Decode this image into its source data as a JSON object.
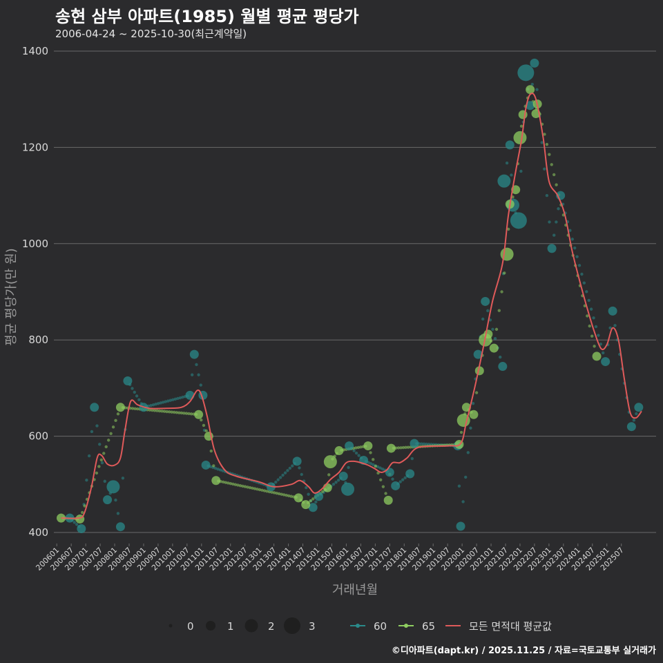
{
  "title": "송현 삼부 아파트(1985) 월별 평균 평당가",
  "subtitle": "2006-04-24 ~ 2025-10-30(최근계약일)",
  "footer": "©디아파트(dapt.kr) / 2025.11.25 / 자료=국토교통부 실거래가",
  "colors": {
    "background": "#2b2b2d",
    "grid": "#6a6a6a",
    "series_60": "#2a8a8a",
    "series_65": "#8fce60",
    "series_avg": "#e05a5a",
    "text": "#d8d8d8"
  },
  "chart_data": {
    "type": "line",
    "xlabel": "거래년월",
    "ylabel": "평균 평당가(만 원)",
    "ylim": [
      380,
      1420
    ],
    "yticks": [
      400,
      600,
      800,
      1000,
      1200,
      1400
    ],
    "xticks": [
      "200601",
      "200607",
      "200701",
      "200707",
      "200801",
      "200807",
      "200901",
      "200907",
      "201001",
      "201007",
      "201101",
      "201107",
      "201201",
      "201207",
      "201301",
      "201307",
      "201401",
      "201407",
      "201501",
      "201507",
      "201601",
      "201607",
      "201701",
      "201707",
      "201801",
      "201807",
      "201901",
      "201907",
      "202001",
      "202007",
      "202101",
      "202107",
      "202201",
      "202207",
      "202301",
      "202307",
      "202401",
      "202407",
      "202501",
      "202507"
    ],
    "size_legend": {
      "labels": [
        "0",
        "1",
        "2",
        "3"
      ]
    },
    "series": [
      {
        "name": "60",
        "points": [
          {
            "x": 2006.45,
            "y": 430,
            "n": 1
          },
          {
            "x": 2006.85,
            "y": 408,
            "n": 1
          },
          {
            "x": 2007.3,
            "y": 660,
            "n": 1
          },
          {
            "x": 2007.75,
            "y": 468,
            "n": 1
          },
          {
            "x": 2007.95,
            "y": 495,
            "n": 2
          },
          {
            "x": 2008.2,
            "y": 412,
            "n": 1
          },
          {
            "x": 2008.45,
            "y": 715,
            "n": 1
          },
          {
            "x": 2009.0,
            "y": 660,
            "n": 1
          },
          {
            "x": 2010.6,
            "y": 685,
            "n": 1
          },
          {
            "x": 2010.75,
            "y": 770,
            "n": 1
          },
          {
            "x": 2011.05,
            "y": 685,
            "n": 1
          },
          {
            "x": 2011.15,
            "y": 540,
            "n": 1
          },
          {
            "x": 2013.4,
            "y": 495,
            "n": 1
          },
          {
            "x": 2014.3,
            "y": 548,
            "n": 1
          },
          {
            "x": 2014.85,
            "y": 452,
            "n": 1
          },
          {
            "x": 2015.05,
            "y": 475,
            "n": 1
          },
          {
            "x": 2015.9,
            "y": 517,
            "n": 1
          },
          {
            "x": 2016.05,
            "y": 490,
            "n": 2
          },
          {
            "x": 2016.1,
            "y": 580,
            "n": 1
          },
          {
            "x": 2016.6,
            "y": 550,
            "n": 1
          },
          {
            "x": 2017.5,
            "y": 525,
            "n": 1
          },
          {
            "x": 2017.7,
            "y": 497,
            "n": 1
          },
          {
            "x": 2018.2,
            "y": 522,
            "n": 1
          },
          {
            "x": 2018.35,
            "y": 585,
            "n": 1
          },
          {
            "x": 2019.85,
            "y": 580,
            "n": 1
          },
          {
            "x": 2019.95,
            "y": 413,
            "n": 1
          },
          {
            "x": 2020.55,
            "y": 770,
            "n": 1
          },
          {
            "x": 2020.8,
            "y": 880,
            "n": 1
          },
          {
            "x": 2021.4,
            "y": 745,
            "n": 1
          },
          {
            "x": 2021.45,
            "y": 1130,
            "n": 2
          },
          {
            "x": 2021.65,
            "y": 1205,
            "n": 1
          },
          {
            "x": 2021.75,
            "y": 1080,
            "n": 2
          },
          {
            "x": 2021.95,
            "y": 1048,
            "n": 3
          },
          {
            "x": 2022.2,
            "y": 1355,
            "n": 3
          },
          {
            "x": 2022.35,
            "y": 1287,
            "n": 1
          },
          {
            "x": 2022.5,
            "y": 1375,
            "n": 1
          },
          {
            "x": 2023.1,
            "y": 990,
            "n": 1
          },
          {
            "x": 2023.4,
            "y": 1100,
            "n": 1
          },
          {
            "x": 2024.95,
            "y": 755,
            "n": 1
          },
          {
            "x": 2025.2,
            "y": 860,
            "n": 1
          },
          {
            "x": 2025.85,
            "y": 620,
            "n": 1
          },
          {
            "x": 2026.1,
            "y": 660,
            "n": 1
          }
        ]
      },
      {
        "name": "65",
        "points": [
          {
            "x": 2006.15,
            "y": 430,
            "n": 1
          },
          {
            "x": 2006.8,
            "y": 428,
            "n": 1
          },
          {
            "x": 2008.2,
            "y": 660,
            "n": 1
          },
          {
            "x": 2010.9,
            "y": 645,
            "n": 1
          },
          {
            "x": 2011.25,
            "y": 600,
            "n": 1
          },
          {
            "x": 2011.5,
            "y": 508,
            "n": 1
          },
          {
            "x": 2014.35,
            "y": 472,
            "n": 1
          },
          {
            "x": 2014.6,
            "y": 458,
            "n": 1
          },
          {
            "x": 2015.35,
            "y": 493,
            "n": 1
          },
          {
            "x": 2015.45,
            "y": 547,
            "n": 2
          },
          {
            "x": 2015.75,
            "y": 570,
            "n": 1
          },
          {
            "x": 2016.75,
            "y": 580,
            "n": 1
          },
          {
            "x": 2017.45,
            "y": 467,
            "n": 1
          },
          {
            "x": 2017.55,
            "y": 575,
            "n": 1
          },
          {
            "x": 2019.9,
            "y": 583,
            "n": 1
          },
          {
            "x": 2020.05,
            "y": 633,
            "n": 2
          },
          {
            "x": 2020.15,
            "y": 660,
            "n": 1
          },
          {
            "x": 2020.4,
            "y": 645,
            "n": 1
          },
          {
            "x": 2020.6,
            "y": 736,
            "n": 1
          },
          {
            "x": 2020.8,
            "y": 800,
            "n": 2
          },
          {
            "x": 2020.9,
            "y": 812,
            "n": 1
          },
          {
            "x": 2021.1,
            "y": 783,
            "n": 1
          },
          {
            "x": 2021.55,
            "y": 978,
            "n": 2
          },
          {
            "x": 2021.65,
            "y": 1082,
            "n": 1
          },
          {
            "x": 2021.85,
            "y": 1112,
            "n": 1
          },
          {
            "x": 2022.0,
            "y": 1220,
            "n": 2
          },
          {
            "x": 2022.1,
            "y": 1268,
            "n": 1
          },
          {
            "x": 2022.35,
            "y": 1320,
            "n": 1
          },
          {
            "x": 2022.55,
            "y": 1270,
            "n": 1
          },
          {
            "x": 2022.6,
            "y": 1290,
            "n": 1
          },
          {
            "x": 2024.65,
            "y": 766,
            "n": 1
          }
        ]
      },
      {
        "name": "모든 면적대 평균값",
        "points": [
          {
            "x": 2006.15,
            "y": 430
          },
          {
            "x": 2006.75,
            "y": 430
          },
          {
            "x": 2006.95,
            "y": 440
          },
          {
            "x": 2007.2,
            "y": 495
          },
          {
            "x": 2007.4,
            "y": 556
          },
          {
            "x": 2007.55,
            "y": 560
          },
          {
            "x": 2007.75,
            "y": 542
          },
          {
            "x": 2008.0,
            "y": 540
          },
          {
            "x": 2008.2,
            "y": 555
          },
          {
            "x": 2008.35,
            "y": 610
          },
          {
            "x": 2008.55,
            "y": 672
          },
          {
            "x": 2008.8,
            "y": 665
          },
          {
            "x": 2009.2,
            "y": 658
          },
          {
            "x": 2009.8,
            "y": 658
          },
          {
            "x": 2010.3,
            "y": 660
          },
          {
            "x": 2010.6,
            "y": 672
          },
          {
            "x": 2010.85,
            "y": 695
          },
          {
            "x": 2011.0,
            "y": 685
          },
          {
            "x": 2011.2,
            "y": 640
          },
          {
            "x": 2011.45,
            "y": 570
          },
          {
            "x": 2011.8,
            "y": 530
          },
          {
            "x": 2012.2,
            "y": 517
          },
          {
            "x": 2013.0,
            "y": 505
          },
          {
            "x": 2013.5,
            "y": 495
          },
          {
            "x": 2014.1,
            "y": 500
          },
          {
            "x": 2014.4,
            "y": 508
          },
          {
            "x": 2014.7,
            "y": 495
          },
          {
            "x": 2014.9,
            "y": 482
          },
          {
            "x": 2015.15,
            "y": 490
          },
          {
            "x": 2015.45,
            "y": 510
          },
          {
            "x": 2015.75,
            "y": 525
          },
          {
            "x": 2016.0,
            "y": 545
          },
          {
            "x": 2016.25,
            "y": 548
          },
          {
            "x": 2016.5,
            "y": 545
          },
          {
            "x": 2016.75,
            "y": 540
          },
          {
            "x": 2017.0,
            "y": 532
          },
          {
            "x": 2017.2,
            "y": 525
          },
          {
            "x": 2017.4,
            "y": 530
          },
          {
            "x": 2017.6,
            "y": 545
          },
          {
            "x": 2017.85,
            "y": 545
          },
          {
            "x": 2018.1,
            "y": 555
          },
          {
            "x": 2018.5,
            "y": 577
          },
          {
            "x": 2019.5,
            "y": 580
          },
          {
            "x": 2019.95,
            "y": 585
          },
          {
            "x": 2020.15,
            "y": 630
          },
          {
            "x": 2020.45,
            "y": 705
          },
          {
            "x": 2020.75,
            "y": 790
          },
          {
            "x": 2021.05,
            "y": 880
          },
          {
            "x": 2021.4,
            "y": 960
          },
          {
            "x": 2021.6,
            "y": 1060
          },
          {
            "x": 2021.85,
            "y": 1150
          },
          {
            "x": 2022.05,
            "y": 1215
          },
          {
            "x": 2022.2,
            "y": 1280
          },
          {
            "x": 2022.35,
            "y": 1310
          },
          {
            "x": 2022.55,
            "y": 1300
          },
          {
            "x": 2022.8,
            "y": 1220
          },
          {
            "x": 2023.0,
            "y": 1130
          },
          {
            "x": 2023.3,
            "y": 1100
          },
          {
            "x": 2023.55,
            "y": 1060
          },
          {
            "x": 2023.8,
            "y": 985
          },
          {
            "x": 2024.05,
            "y": 925
          },
          {
            "x": 2024.3,
            "y": 870
          },
          {
            "x": 2024.55,
            "y": 820
          },
          {
            "x": 2024.8,
            "y": 782
          },
          {
            "x": 2025.0,
            "y": 790
          },
          {
            "x": 2025.2,
            "y": 825
          },
          {
            "x": 2025.4,
            "y": 800
          },
          {
            "x": 2025.6,
            "y": 720
          },
          {
            "x": 2025.8,
            "y": 650
          },
          {
            "x": 2026.0,
            "y": 638
          },
          {
            "x": 2026.2,
            "y": 652
          }
        ]
      }
    ]
  }
}
